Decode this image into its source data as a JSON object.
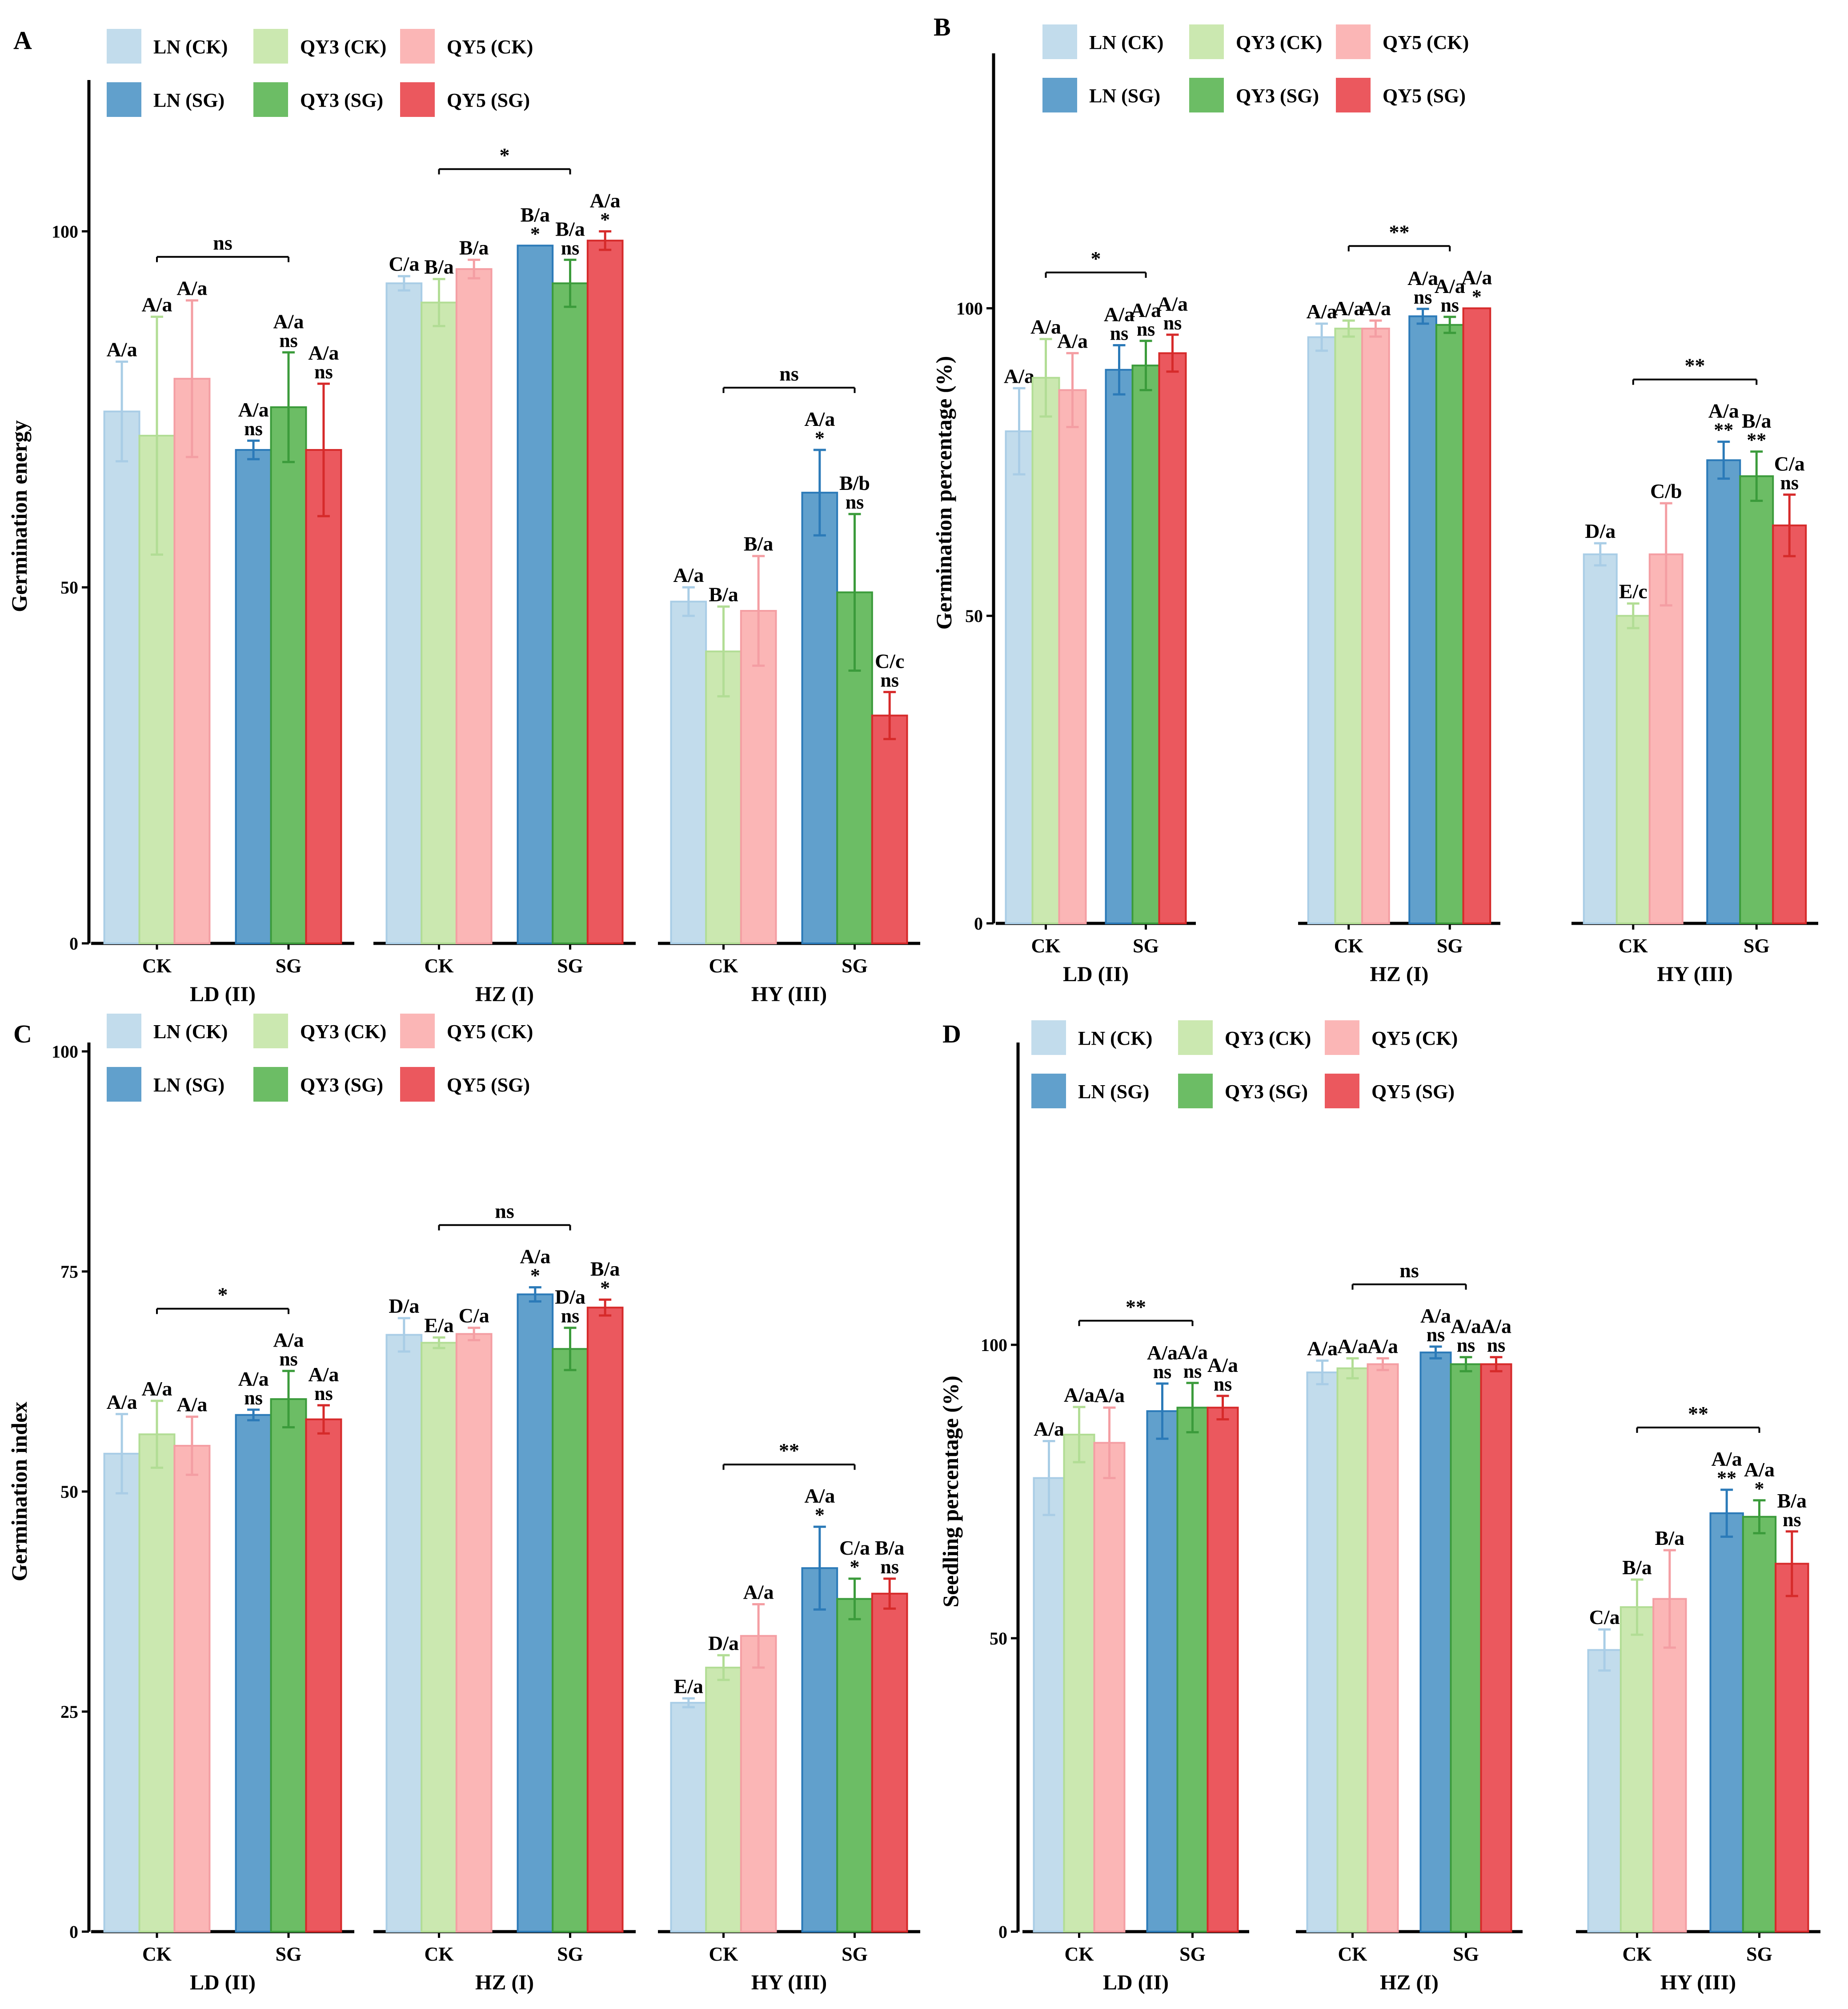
{
  "legend": [
    {
      "label": "LN (CK)",
      "color": "#c2dcec"
    },
    {
      "label": "QY3 (CK)",
      "color": "#cbe8b0"
    },
    {
      "label": "QY5 (CK)",
      "color": "#fbb6b6"
    },
    {
      "label": "LN (SG)",
      "color": "#61a0cc"
    },
    {
      "label": "QY3 (SG)",
      "color": "#6cbd65"
    },
    {
      "label": "QY5 (SG)",
      "color": "#eb585e"
    }
  ],
  "series_colors": {
    "fill": [
      "#c2dcec",
      "#cbe8b0",
      "#fbb6b6",
      "#61a0cc",
      "#6cbd65",
      "#eb585e"
    ],
    "stroke": [
      "#a9cde6",
      "#b2dd95",
      "#f49ea3",
      "#2b7ab8",
      "#3b9b3b",
      "#d62a2a"
    ]
  },
  "chart_data": [
    {
      "panel": "A",
      "type": "bar",
      "ylabel": "Germination energy",
      "ylim": [
        0,
        120
      ],
      "yticks": [
        0,
        50,
        100
      ],
      "categories": [
        "CK",
        "SG"
      ],
      "facets": [
        {
          "label": "LD (II)",
          "sig": "ns",
          "values": [
            74.7,
            71.3,
            79.3,
            69.3,
            75.3,
            69.3
          ],
          "errors": [
            7,
            16.7,
            11,
            1.3,
            7.7,
            9.3
          ],
          "letters": [
            "A/a",
            "A/a",
            "A/a",
            "A/a",
            "A/a",
            "A/a"
          ],
          "marks": [
            "",
            "",
            "",
            "ns",
            "ns",
            "ns"
          ]
        },
        {
          "label": "HZ (I)",
          "sig": "*",
          "values": [
            92.7,
            90,
            94.7,
            98,
            92.7,
            98.7
          ],
          "errors": [
            1,
            3.3,
            1.3,
            0,
            3.3,
            1.3
          ],
          "letters": [
            "C/a",
            "B/a",
            "B/a",
            "B/a",
            "B/a",
            "A/a"
          ],
          "marks": [
            "",
            "",
            "",
            "*",
            "ns",
            "*"
          ]
        },
        {
          "label": "HY (III)",
          "sig": "ns",
          "values": [
            48,
            41,
            46.7,
            63.3,
            49.3,
            32
          ],
          "errors": [
            2,
            6.3,
            7.7,
            6,
            11,
            3.3
          ],
          "letters": [
            "A/a",
            "B/a",
            "B/a",
            "A/a",
            "B/b",
            "C/c"
          ],
          "marks": [
            "",
            "",
            "",
            "*",
            "ns",
            "ns"
          ]
        }
      ]
    },
    {
      "panel": "B",
      "type": "bar",
      "ylabel": "Germination percentage (%)",
      "ylim": [
        0,
        140
      ],
      "yticks": [
        0,
        50,
        100
      ],
      "categories": [
        "CK",
        "SG"
      ],
      "facets": [
        {
          "label": "LD (II)",
          "sig": "*",
          "values": [
            80,
            88.7,
            86.7,
            90,
            90.7,
            92.7
          ],
          "errors": [
            7,
            6.3,
            6,
            4,
            4,
            3
          ],
          "letters": [
            "A/a",
            "A/a",
            "A/a",
            "A/a",
            "A/a",
            "A/a"
          ],
          "marks": [
            "",
            "",
            "",
            "ns",
            "ns",
            "ns"
          ]
        },
        {
          "label": "HZ (I)",
          "sig": "**",
          "values": [
            95.3,
            96.7,
            96.7,
            98.7,
            97.3,
            100
          ],
          "errors": [
            2.2,
            1.3,
            1.3,
            1.2,
            1.3,
            0
          ],
          "letters": [
            "A/a",
            "A/a",
            "A/a",
            "A/a",
            "A/a",
            "A/a"
          ],
          "marks": [
            "",
            "",
            "",
            "ns",
            "ns",
            "*"
          ]
        },
        {
          "label": "HY (III)",
          "sig": "**",
          "values": [
            60,
            50,
            60,
            75.3,
            72.7,
            64.7
          ],
          "errors": [
            1.8,
            2,
            8.3,
            3,
            4,
            5
          ],
          "letters": [
            "D/a",
            "E/c",
            "C/b",
            "A/a",
            "B/a",
            "C/a"
          ],
          "marks": [
            "",
            "",
            "",
            "**",
            "**",
            "ns"
          ]
        }
      ]
    },
    {
      "panel": "C",
      "type": "bar",
      "ylabel": "Germination index",
      "ylim": [
        0,
        100
      ],
      "yticks": [
        0,
        25,
        50,
        75,
        100
      ],
      "categories": [
        "CK",
        "SG"
      ],
      "facets": [
        {
          "label": "LD (II)",
          "sig": "*",
          "values": [
            54.3,
            56.5,
            55.2,
            58.7,
            60.5,
            58.2
          ],
          "errors": [
            4.5,
            3.8,
            3.3,
            0.6,
            3.2,
            1.6
          ],
          "letters": [
            "A/a",
            "A/a",
            "A/a",
            "A/a",
            "A/a",
            "A/a"
          ],
          "marks": [
            "",
            "",
            "",
            "ns",
            "ns",
            "ns"
          ]
        },
        {
          "label": "HZ (I)",
          "sig": "ns",
          "values": [
            67.8,
            66.9,
            67.9,
            72.4,
            66.2,
            70.9
          ],
          "errors": [
            1.9,
            0.6,
            0.7,
            0.8,
            2.4,
            0.9
          ],
          "letters": [
            "D/a",
            "E/a",
            "C/a",
            "A/a",
            "D/a",
            "B/a"
          ],
          "marks": [
            "",
            "",
            "",
            "*",
            "ns",
            "*"
          ]
        },
        {
          "label": "HY (III)",
          "sig": "**",
          "values": [
            26,
            30,
            33.6,
            41.3,
            37.8,
            38.4
          ],
          "errors": [
            0.5,
            1.4,
            3.6,
            4.7,
            2.3,
            1.7
          ],
          "letters": [
            "E/a",
            "D/a",
            "A/a",
            "A/a",
            "C/a",
            "B/a"
          ],
          "marks": [
            "",
            "",
            "",
            "*",
            "*",
            "ns"
          ]
        }
      ]
    },
    {
      "panel": "D",
      "type": "bar",
      "ylabel": "Seedling percentage (%)",
      "ylim": [
        0,
        150
      ],
      "yticks": [
        0,
        50,
        100
      ],
      "categories": [
        "CK",
        "SG"
      ],
      "facets": [
        {
          "label": "LD (II)",
          "sig": "**",
          "values": [
            77.3,
            84.7,
            83.3,
            88.7,
            89.3,
            89.3
          ],
          "errors": [
            6.3,
            4.7,
            6,
            4.7,
            4.2,
            2
          ],
          "letters": [
            "A/a",
            "A/a",
            "A/a",
            "A/a",
            "A/a",
            "A/a"
          ],
          "marks": [
            "",
            "",
            "",
            "ns",
            "ns",
            "ns"
          ]
        },
        {
          "label": "HZ (I)",
          "sig": "ns",
          "values": [
            95.3,
            96,
            96.7,
            98.7,
            96.7,
            96.7
          ],
          "errors": [
            2,
            1.7,
            1,
            1,
            1.2,
            1.2
          ],
          "letters": [
            "A/a",
            "A/a",
            "A/a",
            "A/a",
            "A/a",
            "A/a"
          ],
          "marks": [
            "",
            "",
            "",
            "ns",
            "ns",
            "ns"
          ]
        },
        {
          "label": "HY (III)",
          "sig": "**",
          "values": [
            48,
            55.3,
            56.7,
            71.3,
            70.7,
            62.7
          ],
          "errors": [
            3.5,
            4.7,
            8.3,
            4,
            2.8,
            5.5
          ],
          "letters": [
            "C/a",
            "B/a",
            "B/a",
            "A/a",
            "A/a",
            "B/a"
          ],
          "marks": [
            "",
            "",
            "",
            "**",
            "*",
            "ns"
          ]
        }
      ]
    }
  ]
}
